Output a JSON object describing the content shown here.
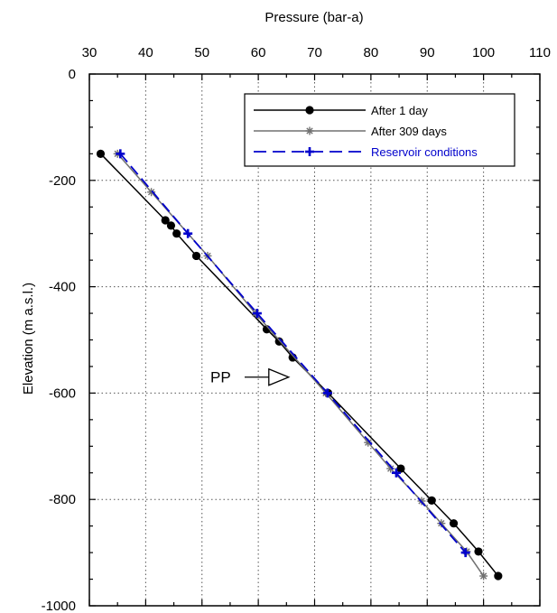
{
  "chart_data": {
    "type": "line",
    "title": "",
    "xlabel": "Pressure (bar-a)",
    "ylabel": "Elevation (m a.s.l.)",
    "x_axis_position": "top",
    "xlim": [
      30,
      110
    ],
    "ylim": [
      -1000,
      0
    ],
    "xticks": [
      30,
      40,
      50,
      60,
      70,
      80,
      90,
      100,
      110
    ],
    "yticks": [
      0,
      -200,
      -400,
      -600,
      -800,
      -1000
    ],
    "grid": true,
    "legend_position": "top-right",
    "series": [
      {
        "name": "After 1 day",
        "color": "#000000",
        "marker": "circle",
        "dash": "solid",
        "x": [
          32.0,
          43.5,
          44.5,
          45.5,
          49.0,
          61.5,
          63.7,
          66.1,
          72.4,
          85.3,
          90.8,
          94.7,
          99.1,
          102.6
        ],
        "y": [
          -150,
          -275,
          -285,
          -300,
          -342,
          -480,
          -503,
          -533,
          -600,
          -742,
          -802,
          -845,
          -898,
          -944
        ]
      },
      {
        "name": "After 309 days",
        "color": "#707070",
        "marker": "star",
        "dash": "solid",
        "x": [
          35.0,
          41.0,
          51.0,
          59.5,
          72.0,
          79.5,
          83.5,
          89.0,
          92.5,
          97.0,
          100.0
        ],
        "y": [
          -150,
          -222,
          -342,
          -450,
          -600,
          -693,
          -742,
          -803,
          -845,
          -898,
          -944
        ]
      },
      {
        "name": "Reservoir conditions",
        "color": "#0000cc",
        "marker": "plus",
        "dash": "dashed",
        "x": [
          35.5,
          47.5,
          59.8,
          72.3,
          84.5,
          96.8
        ],
        "y": [
          -150,
          -300,
          -450,
          -600,
          -750,
          -900
        ]
      }
    ],
    "annotations": [
      {
        "text": "PP",
        "x": 59.5,
        "y": -570,
        "arrow_to": [
          67.0,
          -570
        ]
      }
    ]
  }
}
